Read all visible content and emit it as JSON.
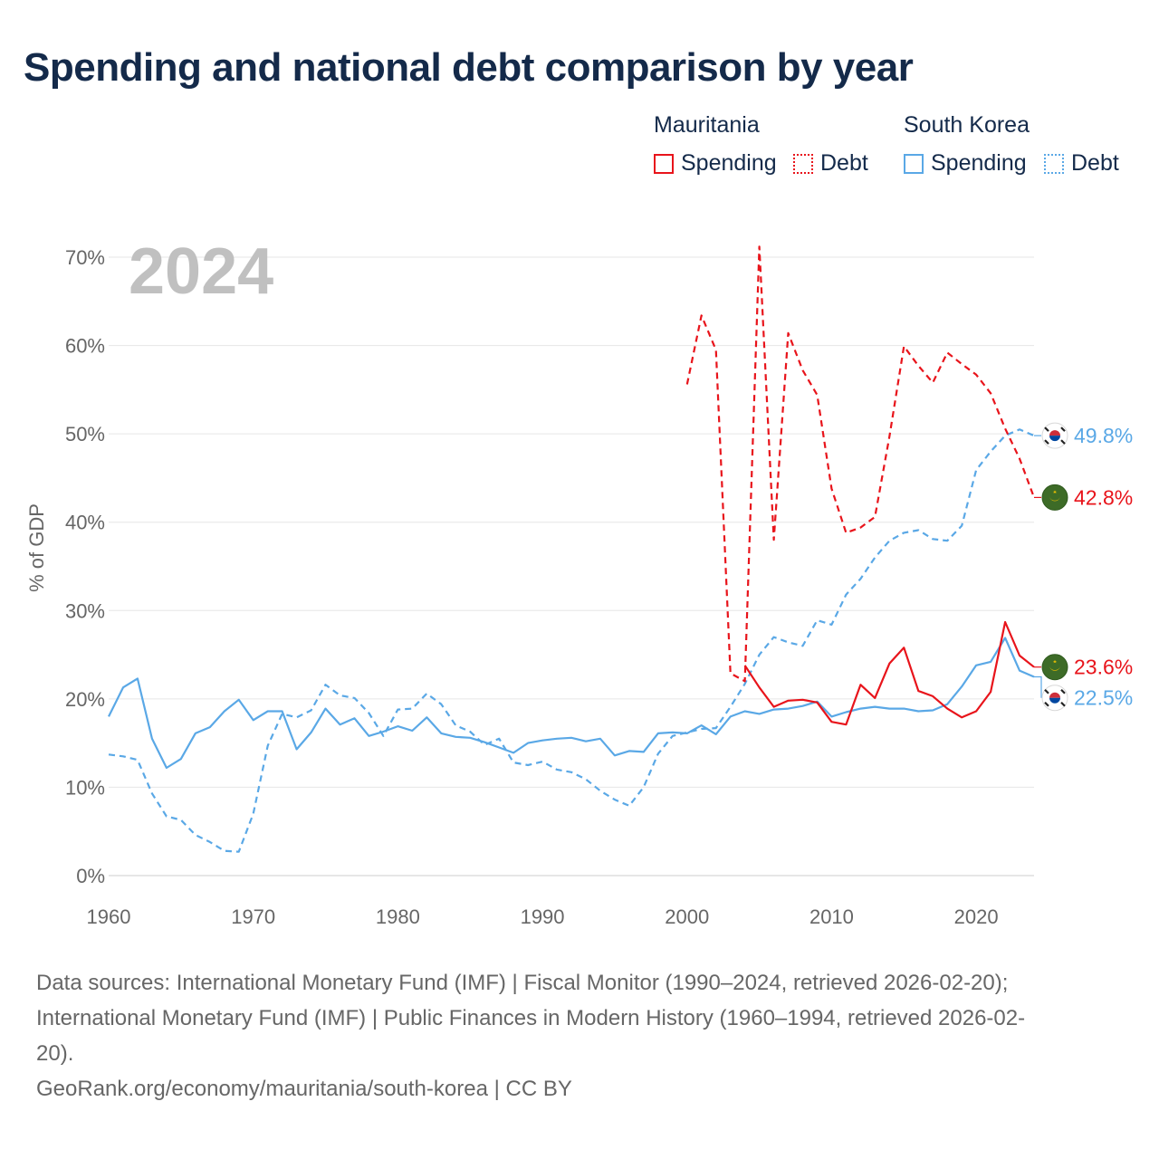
{
  "title": "Spending and national debt comparison by year",
  "legend": {
    "groups": [
      {
        "name": "Mauritania",
        "color": "#e8141b",
        "items": [
          {
            "label": "Spending",
            "style": "solid"
          },
          {
            "label": "Debt",
            "style": "dotted"
          }
        ]
      },
      {
        "name": "South Korea",
        "color": "#5aa8e6",
        "items": [
          {
            "label": "Spending",
            "style": "solid"
          },
          {
            "label": "Debt",
            "style": "dotted"
          }
        ]
      }
    ]
  },
  "colors": {
    "mauritania": "#e8141b",
    "south_korea": "#5aa8e6",
    "title": "#142a4a",
    "watermark": "#c0c0c0",
    "grid": "#e6e6e6",
    "axis_text": "#666666"
  },
  "chart_data": {
    "type": "line",
    "watermark_year": "2024",
    "ylabel": "% of GDP",
    "xlim": [
      1960,
      2024
    ],
    "ylim": [
      0,
      70
    ],
    "x_ticks": [
      "1960",
      "1970",
      "1980",
      "1990",
      "2000",
      "2010",
      "2020"
    ],
    "y_ticks": [
      "0%",
      "10%",
      "20%",
      "30%",
      "40%",
      "50%",
      "60%",
      "70%"
    ],
    "series": [
      {
        "name": "South Korea Spending",
        "country": "South Korea",
        "metric": "Spending",
        "color": "#5aa8e6",
        "dashed": false,
        "x": [
          1960,
          1961,
          1962,
          1963,
          1964,
          1965,
          1966,
          1967,
          1968,
          1969,
          1970,
          1971,
          1972,
          1973,
          1974,
          1975,
          1976,
          1977,
          1978,
          1979,
          1980,
          1981,
          1982,
          1983,
          1984,
          1985,
          1986,
          1987,
          1988,
          1989,
          1990,
          1991,
          1992,
          1993,
          1994,
          1995,
          1996,
          1997,
          1998,
          1999,
          2000,
          2001,
          2002,
          2003,
          2004,
          2005,
          2006,
          2007,
          2008,
          2009,
          2010,
          2011,
          2012,
          2013,
          2014,
          2015,
          2016,
          2017,
          2018,
          2019,
          2020,
          2021,
          2022,
          2023,
          2024
        ],
        "values": [
          18.0,
          21.3,
          22.3,
          15.5,
          12.2,
          13.2,
          16.1,
          16.8,
          18.6,
          19.9,
          17.6,
          18.6,
          18.6,
          14.3,
          16.2,
          18.9,
          17.1,
          17.8,
          15.8,
          16.3,
          16.9,
          16.4,
          17.9,
          16.1,
          15.7,
          15.6,
          15.1,
          14.5,
          13.9,
          15.0,
          15.3,
          15.5,
          15.6,
          15.2,
          15.5,
          13.6,
          14.1,
          14.0,
          16.1,
          16.2,
          16.1,
          17.0,
          16.0,
          18.0,
          18.6,
          18.3,
          18.8,
          18.9,
          19.2,
          19.7,
          18.0,
          18.5,
          18.9,
          19.1,
          18.9,
          18.9,
          18.6,
          18.7,
          19.4,
          21.4,
          23.8,
          24.2,
          26.9,
          23.2,
          22.5
        ],
        "end_label": "22.5%"
      },
      {
        "name": "South Korea Debt",
        "country": "South Korea",
        "metric": "Debt",
        "color": "#5aa8e6",
        "dashed": true,
        "x": [
          1960,
          1961,
          1962,
          1963,
          1964,
          1965,
          1966,
          1967,
          1968,
          1969,
          1970,
          1971,
          1972,
          1973,
          1974,
          1975,
          1976,
          1977,
          1978,
          1979,
          1980,
          1981,
          1982,
          1983,
          1984,
          1985,
          1986,
          1987,
          1988,
          1989,
          1990,
          1991,
          1992,
          1993,
          1994,
          1995,
          1996,
          1997,
          1998,
          1999,
          2000,
          2001,
          2002,
          2003,
          2004,
          2005,
          2006,
          2007,
          2008,
          2009,
          2010,
          2011,
          2012,
          2013,
          2014,
          2015,
          2016,
          2017,
          2018,
          2019,
          2020,
          2021,
          2022,
          2023,
          2024
        ],
        "values": [
          13.7,
          13.5,
          13.1,
          9.3,
          6.7,
          6.3,
          4.6,
          3.8,
          2.8,
          2.7,
          7.0,
          14.7,
          18.3,
          17.9,
          18.7,
          21.6,
          20.4,
          20.1,
          18.4,
          15.8,
          18.8,
          18.9,
          20.6,
          19.4,
          17.0,
          16.3,
          14.8,
          15.5,
          12.8,
          12.5,
          12.9,
          12.0,
          11.7,
          10.9,
          9.6,
          8.6,
          7.9,
          10.0,
          13.8,
          15.8,
          16.2,
          16.6,
          16.7,
          19.1,
          21.7,
          25.0,
          27.0,
          26.4,
          26.0,
          28.9,
          28.4,
          31.8,
          33.6,
          36.0,
          37.9,
          38.8,
          39.1,
          38.1,
          37.9,
          39.6,
          45.9,
          48.0,
          49.8,
          50.5,
          49.8
        ],
        "end_label": "49.8%"
      },
      {
        "name": "Mauritania Spending",
        "country": "Mauritania",
        "metric": "Spending",
        "color": "#e8141b",
        "dashed": false,
        "x": [
          2004,
          2005,
          2006,
          2007,
          2008,
          2009,
          2010,
          2011,
          2012,
          2013,
          2014,
          2015,
          2016,
          2017,
          2018,
          2019,
          2020,
          2021,
          2022,
          2023,
          2024
        ],
        "values": [
          23.8,
          21.3,
          19.1,
          19.8,
          19.9,
          19.6,
          17.4,
          17.1,
          21.6,
          20.1,
          24.0,
          25.8,
          20.9,
          20.3,
          18.9,
          17.9,
          18.6,
          20.8,
          28.7,
          24.9,
          23.6
        ],
        "end_label": "23.6%"
      },
      {
        "name": "Mauritania Debt",
        "country": "Mauritania",
        "metric": "Debt",
        "color": "#e8141b",
        "dashed": true,
        "x": [
          2000,
          2001,
          2002,
          2003,
          2004,
          2005,
          2006,
          2007,
          2008,
          2009,
          2010,
          2011,
          2012,
          2013,
          2014,
          2015,
          2016,
          2017,
          2018,
          2019,
          2020,
          2021,
          2022,
          2023,
          2024
        ],
        "values": [
          55.6,
          63.4,
          59.5,
          22.9,
          22.0,
          71.2,
          38.0,
          61.4,
          57.2,
          54.4,
          43.8,
          38.8,
          39.4,
          40.6,
          49.7,
          59.9,
          57.7,
          55.8,
          59.2,
          57.9,
          56.7,
          54.6,
          50.6,
          47.2,
          42.8
        ],
        "end_label": "42.8%"
      }
    ]
  },
  "source": {
    "line1": "Data sources: International Monetary Fund (IMF) | Fiscal Monitor (1990–2024, retrieved 2026-02-20);",
    "line2": "International Monetary Fund (IMF) | Public Finances in Modern History (1960–1994, retrieved 2026-02-",
    "line3": "20).",
    "line4": "GeoRank.org/economy/mauritania/south-korea | CC BY"
  }
}
